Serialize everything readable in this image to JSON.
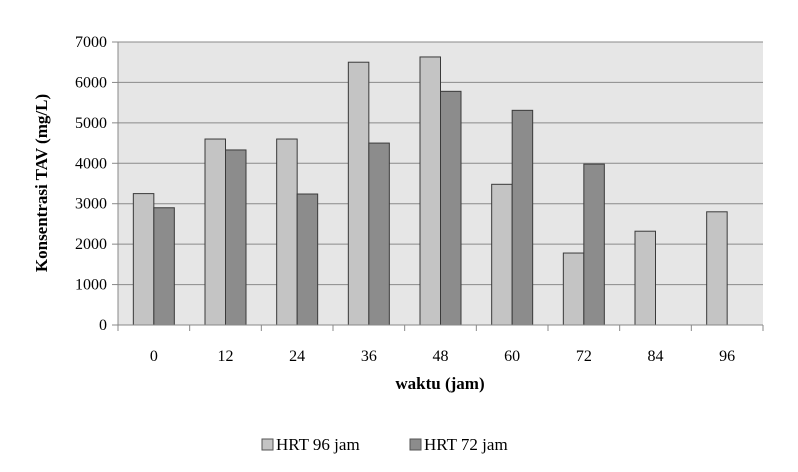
{
  "chart_data": {
    "type": "bar",
    "title": "",
    "xlabel": "waktu (jam)",
    "ylabel": "Konsentrasi TAV (mg/L)",
    "categories": [
      "0",
      "12",
      "24",
      "36",
      "48",
      "60",
      "72",
      "84",
      "96"
    ],
    "series": [
      {
        "name": "HRT 96 jam",
        "color": "#c4c4c4",
        "values": [
          3250,
          4600,
          4600,
          6500,
          6630,
          3480,
          1780,
          2320,
          2800
        ]
      },
      {
        "name": "HRT 72 jam",
        "color": "#8c8c8c",
        "values": [
          2900,
          4330,
          3240,
          4500,
          5780,
          5310,
          3980,
          null,
          null
        ]
      }
    ],
    "ylim": [
      0,
      7000
    ],
    "yticks": [
      0,
      1000,
      2000,
      3000,
      4000,
      5000,
      6000,
      7000
    ],
    "grid": true,
    "plot_background": "#e6e6e6",
    "legend_position": "bottom"
  }
}
